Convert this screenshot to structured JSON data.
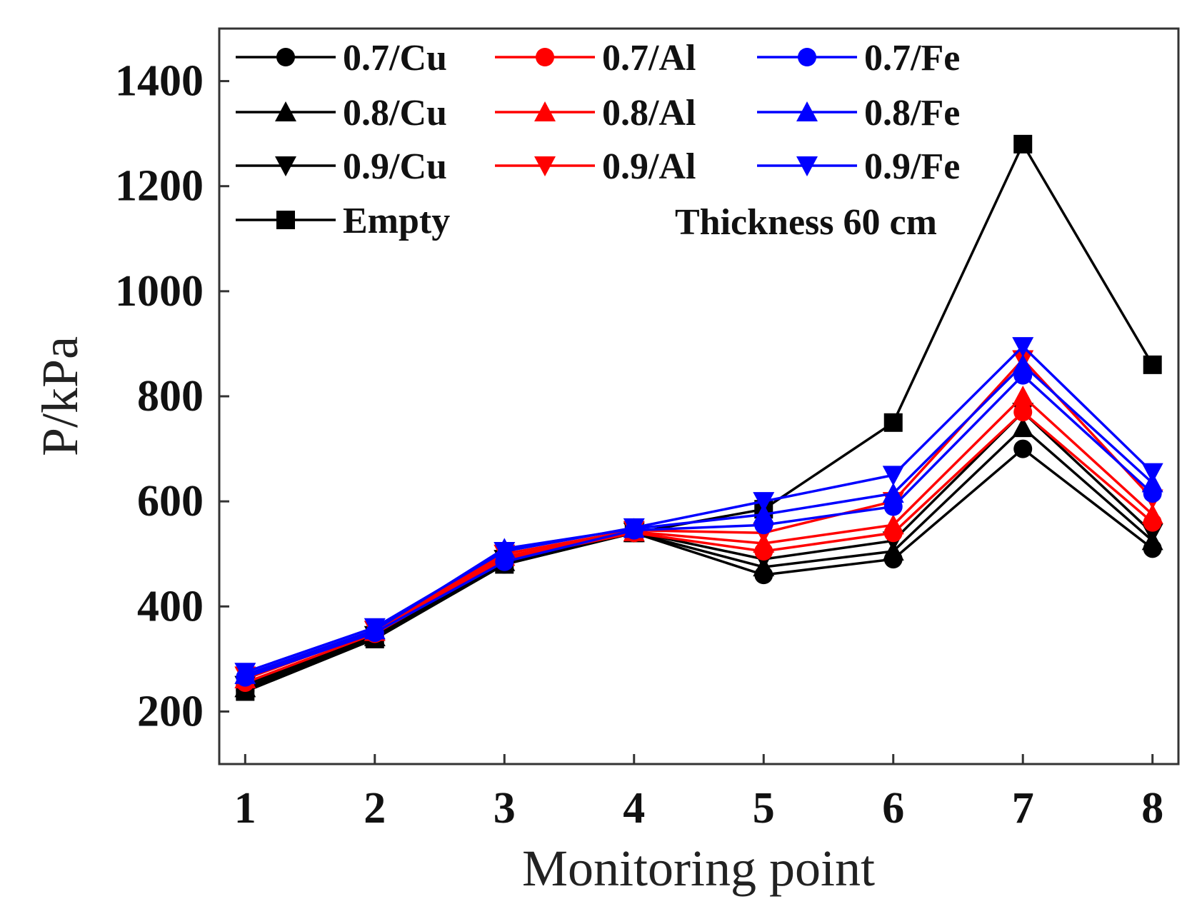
{
  "chart_data": {
    "type": "line",
    "title": "",
    "xlabel": "Monitoring point",
    "ylabel": "P/kPa",
    "x": [
      1,
      2,
      3,
      4,
      5,
      6,
      7,
      8
    ],
    "xlim": [
      0.8,
      8.2
    ],
    "ylim": [
      100,
      1500
    ],
    "yticks": [
      200,
      400,
      600,
      800,
      1000,
      1200,
      1400
    ],
    "xticks": [
      1,
      2,
      3,
      4,
      5,
      6,
      7,
      8
    ],
    "annotation": "Thickness 60 cm",
    "series": [
      {
        "name": "0.7/Cu",
        "color": "#000000",
        "marker": "circle",
        "values": [
          240,
          340,
          480,
          540,
          460,
          490,
          700,
          510
        ]
      },
      {
        "name": "0.8/Cu",
        "color": "#000000",
        "marker": "triangle",
        "values": [
          245,
          342,
          485,
          540,
          475,
          505,
          740,
          525
        ]
      },
      {
        "name": "0.9/Cu",
        "color": "#000000",
        "marker": "tri-down",
        "values": [
          250,
          345,
          490,
          542,
          490,
          525,
          770,
          540
        ]
      },
      {
        "name": "0.7/Al",
        "color": "#ff0000",
        "marker": "circle",
        "values": [
          255,
          348,
          490,
          540,
          505,
          540,
          770,
          560
        ]
      },
      {
        "name": "0.8/Al",
        "color": "#ff0000",
        "marker": "triangle",
        "values": [
          262,
          352,
          495,
          542,
          520,
          555,
          800,
          575
        ]
      },
      {
        "name": "0.9/Al",
        "color": "#ff0000",
        "marker": "tri-down",
        "values": [
          268,
          355,
          500,
          545,
          540,
          600,
          870,
          605
        ]
      },
      {
        "name": "0.7/Fe",
        "color": "#0000ff",
        "marker": "circle",
        "values": [
          265,
          350,
          485,
          545,
          555,
          590,
          840,
          615
        ]
      },
      {
        "name": "0.8/Fe",
        "color": "#0000ff",
        "marker": "triangle",
        "values": [
          270,
          355,
          510,
          548,
          575,
          615,
          860,
          635
        ]
      },
      {
        "name": "0.9/Fe",
        "color": "#0000ff",
        "marker": "tri-down",
        "values": [
          275,
          360,
          505,
          550,
          600,
          650,
          895,
          655
        ]
      },
      {
        "name": "Empty",
        "color": "#000000",
        "marker": "square",
        "values": [
          238,
          338,
          480,
          540,
          585,
          750,
          1280,
          860
        ]
      }
    ]
  }
}
